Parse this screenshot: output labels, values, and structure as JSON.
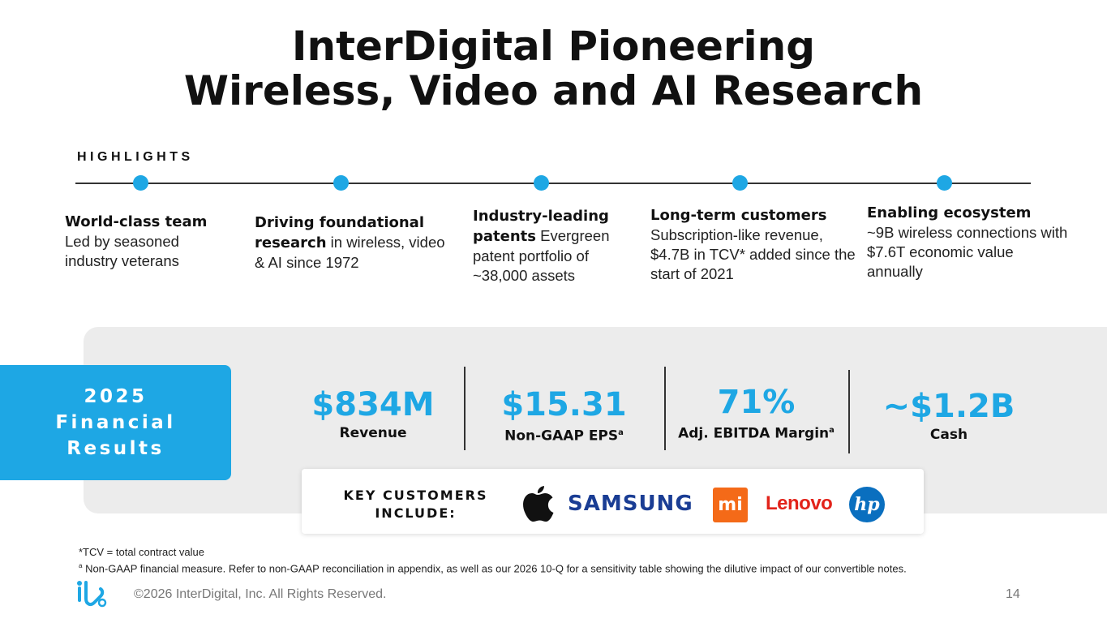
{
  "title": {
    "line1": "InterDigital Pioneering",
    "line2": "Wireless, Video and AI Research"
  },
  "highlights": {
    "label": "HIGHLIGHTS",
    "items": [
      {
        "bold": "World-class team",
        "text": "Led by seasoned industry veterans"
      },
      {
        "bold": "Driving foundational research",
        "text": " in wireless, video & AI since 1972"
      },
      {
        "bold": "Industry-leading patents",
        "text": " Evergreen patent portfolio of ~38,000 assets"
      },
      {
        "bold": "Long-term customers",
        "text": "Subscription-like revenue, $4.7B in TCV* added since the start of 2021"
      },
      {
        "bold": "Enabling ecosystem",
        "text": "~9B wireless connections with $7.6T economic value annually"
      }
    ]
  },
  "financial": {
    "label": "2025\nFinancial\nResults",
    "metrics": [
      {
        "value": "$834M",
        "label": "Revenue",
        "sup": ""
      },
      {
        "value": "$15.31",
        "label": "Non-GAAP EPS",
        "sup": "a"
      },
      {
        "value": "71%",
        "label": "Adj. EBITDA Margin",
        "sup": "a"
      },
      {
        "value": "~$1.2B",
        "label": "Cash",
        "sup": ""
      }
    ]
  },
  "customers": {
    "label": "KEY CUSTOMERS\nINCLUDE:",
    "logos": {
      "apple": "apple-logo",
      "samsung": "SAMSUNG",
      "mi": "mi",
      "lenovo": "Lenovo",
      "hp": "hp"
    }
  },
  "footnotes": {
    "tcv": "*TCV = total contract value",
    "sup": "a",
    "nongaap": " Non-GAAP financial measure. Refer to non-GAAP reconciliation in appendix, as well as our 2026 10-Q for a sensitivity table showing the dilutive impact of our convertible notes."
  },
  "footer": {
    "copyright": "©2026 InterDigital, Inc. All Rights Reserved.",
    "page": "14"
  },
  "colors": {
    "accent": "#1ea7e4",
    "panel": "#ececec"
  }
}
